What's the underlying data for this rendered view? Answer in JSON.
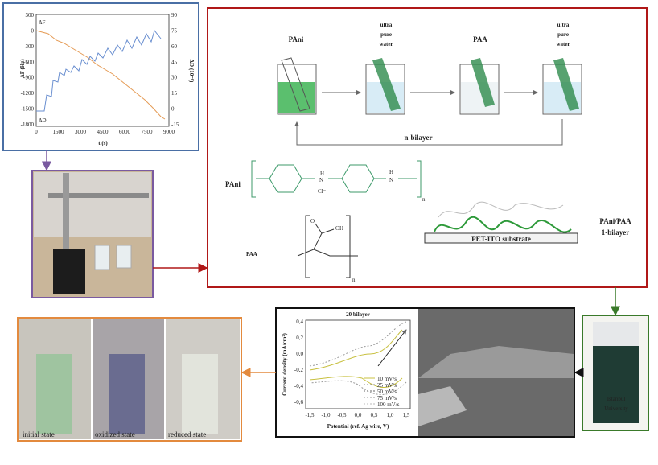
{
  "qcm": {
    "y_label": "ΔF (Hz)",
    "y2_label": "ΔD (10⁻⁶)",
    "x_label": "t (s)",
    "f_tag": "ΔF",
    "d_tag": "ΔD",
    "yticks": [
      "300",
      "0",
      "-300",
      "-600",
      "-900",
      "-1200",
      "-1500",
      "-1800"
    ],
    "y2ticks": [
      "90",
      "75",
      "60",
      "45",
      "30",
      "15",
      "0",
      "-15"
    ],
    "xticks": [
      "0",
      "1500",
      "3000",
      "4500",
      "6000",
      "7500",
      "9000"
    ]
  },
  "process": {
    "step1": "PAni",
    "step2": [
      "ultra",
      "pure",
      "water"
    ],
    "step3": "PAA",
    "step4": [
      "ultra",
      "pure",
      "water"
    ],
    "loop": "n-bilayer"
  },
  "structures": {
    "pani_label": "PAni",
    "pani_h": "H",
    "pani_n": "N",
    "pani_cl": "Cl⁻",
    "pani_h2": "H",
    "pani_n2": "N",
    "pani_sub": "n",
    "paa_label": "PAA",
    "paa_o": "O",
    "paa_oh": "OH",
    "paa_sub": "n"
  },
  "film": {
    "substrate": "PET-ITO substrate",
    "label": [
      "PAni/PAA",
      "1-bilayer"
    ]
  },
  "cv": {
    "title": "20 bilayer",
    "y_label": "Current density (mA/cm²)",
    "x_label": "Potential (ref. Ag wire, V)",
    "yticks": [
      "0,4",
      "0,2",
      "0,0",
      "-0,2",
      "-0,4",
      "-0,6"
    ],
    "xticks": [
      "-1,5",
      "-1,0",
      "-0,5",
      "0,0",
      "0,5",
      "1,0",
      "1,5"
    ],
    "legend": [
      "10 mV/s",
      "25 mV/s",
      "50 mV/s",
      "75 mV/s",
      "100 mV/s"
    ]
  },
  "photo": {
    "caption": [
      "Istanbul",
      "University"
    ]
  },
  "states": [
    "initial state",
    "oxidized state",
    "reduced state"
  ]
}
